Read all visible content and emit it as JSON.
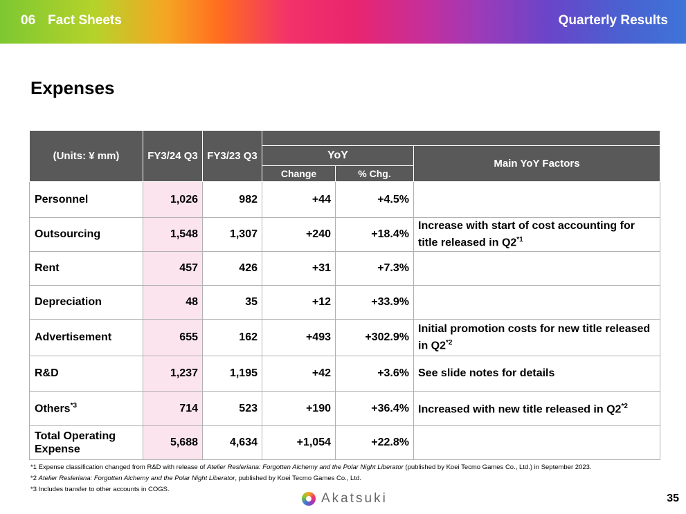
{
  "header": {
    "section_number": "06",
    "section_title": "Fact Sheets",
    "right_title": "Quarterly Results"
  },
  "title": "Expenses",
  "table": {
    "units": "(Units: ¥ mm)",
    "col_fy24": "FY3/24 Q3",
    "col_fy23": "FY3/23 Q3",
    "col_yoy": "YoY",
    "col_change": "Change",
    "col_pct": "% Chg.",
    "col_factors": "Main YoY Factors",
    "rows": [
      {
        "label": "Personnel",
        "fy24": "1,026",
        "fy23": "982",
        "change": "+44",
        "pct": "+4.5%",
        "factor": ""
      },
      {
        "label": "Outsourcing",
        "fy24": "1,548",
        "fy23": "1,307",
        "change": "+240",
        "pct": "+18.4%",
        "factor": "Increase with start of cost accounting for title released in Q2",
        "factor_sup": "*1"
      },
      {
        "label": "Rent",
        "fy24": "457",
        "fy23": "426",
        "change": "+31",
        "pct": "+7.3%",
        "factor": ""
      },
      {
        "label": "Depreciation",
        "fy24": "48",
        "fy23": "35",
        "change": "+12",
        "pct": "+33.9%",
        "factor": ""
      },
      {
        "label": "Advertisement",
        "fy24": "655",
        "fy23": "162",
        "change": "+493",
        "pct": "+302.9%",
        "factor": "Initial promotion costs for new title released in Q2",
        "factor_sup": "*2"
      },
      {
        "label": "R&D",
        "fy24": "1,237",
        "fy23": "1,195",
        "change": "+42",
        "pct": "+3.6%",
        "factor": "See slide notes for details"
      },
      {
        "label": "Others",
        "label_sup": "*3",
        "fy24": "714",
        "fy23": "523",
        "change": "+190",
        "pct": "+36.4%",
        "factor": "Increased with new title released in Q2",
        "factor_sup": "*2"
      },
      {
        "label": "Total Operating Expense",
        "fy24": "5,688",
        "fy23": "4,634",
        "change": "+1,054",
        "pct": "+22.8%",
        "factor": ""
      }
    ]
  },
  "notes": {
    "n1_prefix": "*1 Expense classification changed from R&D with release of ",
    "n1_title": "Atelier Resleriana: Forgotten Alchemy and the Polar Night Liberator",
    "n1_suffix": " (published by Koei Tecmo Games Co., Ltd.) in September 2023.",
    "n2_prefix": "*2 ",
    "n2_title": "Atelier Resleriana: Forgotten Alchemy and the Polar Night Liberator",
    "n2_suffix": ", published by Koei Tecmo Games Co., Ltd.",
    "n3": "*3 Includes transfer to other accounts in COGS."
  },
  "footer": {
    "logo_text": "Akatsuki",
    "page_number": "35"
  }
}
